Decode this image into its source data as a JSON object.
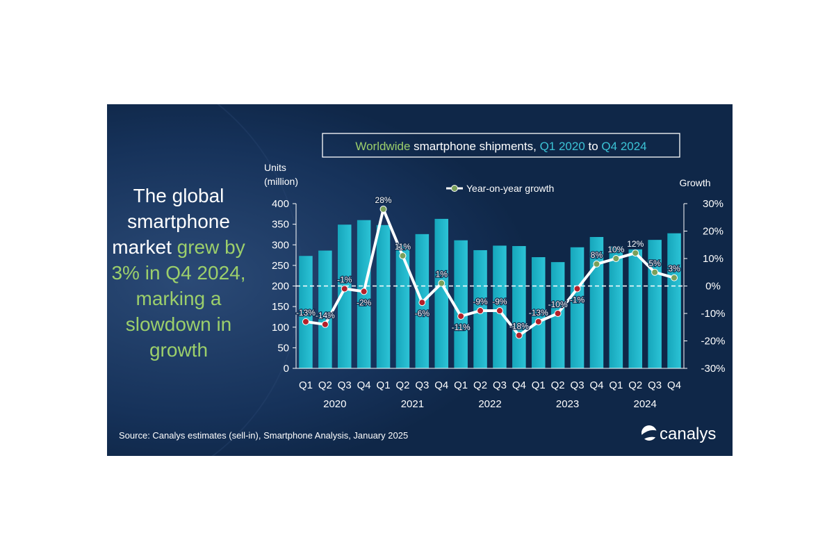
{
  "headline": {
    "lines": [
      [
        {
          "text": "The global",
          "hl": false
        }
      ],
      [
        {
          "text": "smartphone",
          "hl": false
        }
      ],
      [
        {
          "text": "market ",
          "hl": false
        },
        {
          "text": "grew by",
          "hl": true
        }
      ],
      [
        {
          "text": "3% in Q4 2024,",
          "hl": true
        }
      ],
      [
        {
          "text": "marking a",
          "hl": true
        }
      ],
      [
        {
          "text": "slowdown in",
          "hl": true
        }
      ],
      [
        {
          "text": "growth",
          "hl": true
        }
      ]
    ]
  },
  "title_parts": [
    {
      "text": "Worldwide",
      "color": "#9ccf6b"
    },
    {
      "text": " smartphone shipments, ",
      "color": "#ffffff"
    },
    {
      "text": "Q1 2020",
      "color": "#3cc3d6"
    },
    {
      "text": " to ",
      "color": "#ffffff"
    },
    {
      "text": "Q4 2024",
      "color": "#3cc3d6"
    }
  ],
  "source": "Source: Canalys estimates (sell-in), Smartphone Analysis, January 2025",
  "brand": "canalys",
  "colors": {
    "background": "#0f2748",
    "bar": "#1fb5c9",
    "line": "#ffffff",
    "point_positive": "#7aa05a",
    "point_negative": "#b3202a",
    "highlight_text": "#9ccf6b",
    "accent_text": "#3cc3d6"
  },
  "chart_data": {
    "type": "bar",
    "categories": [
      "Q1",
      "Q2",
      "Q3",
      "Q4",
      "Q1",
      "Q2",
      "Q3",
      "Q4",
      "Q1",
      "Q2",
      "Q3",
      "Q4",
      "Q1",
      "Q2",
      "Q3",
      "Q4",
      "Q1",
      "Q2",
      "Q3",
      "Q4"
    ],
    "years": [
      "2020",
      "2021",
      "2022",
      "2023",
      "2024"
    ],
    "ylabel_left": [
      "Units",
      "(million)"
    ],
    "ylabel_right": "Growth",
    "ylim_left": [
      0,
      400
    ],
    "yticks_left": [
      "0",
      "50",
      "100",
      "150",
      "200",
      "250",
      "300",
      "350",
      "400"
    ],
    "ylim_right": [
      -30,
      30
    ],
    "yticks_right": [
      "-30%",
      "-20%",
      "-10%",
      "0%",
      "10%",
      "20%",
      "30%"
    ],
    "legend": "Year-on-year growth",
    "legend_position": "top",
    "series": [
      {
        "name": "Units (million)",
        "type": "bar",
        "values": [
          273,
          286,
          349,
          360,
          348,
          300,
          326,
          363,
          311,
          287,
          298,
          297,
          270,
          258,
          294,
          319,
          296,
          289,
          312,
          328
        ]
      },
      {
        "name": "Year-on-year growth",
        "type": "line",
        "values": [
          -13,
          -14,
          -1,
          -2,
          28,
          11,
          -6,
          1,
          -11,
          -9,
          -9,
          -18,
          -13,
          -10,
          -1,
          8,
          10,
          12,
          5,
          3
        ],
        "labels": [
          "-13%",
          "-14%",
          "-1%",
          "-2%",
          "28%",
          "11%",
          "-6%",
          "1%",
          "-11%",
          "-9%",
          "-9%",
          "-18%",
          "-13%",
          "-10%",
          "-1%",
          "8%",
          "10%",
          "12%",
          "5%",
          "3%"
        ]
      }
    ]
  }
}
